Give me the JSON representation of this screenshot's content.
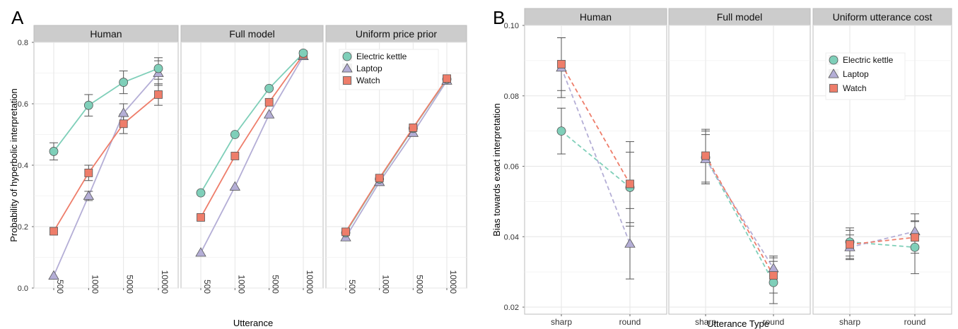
{
  "colors": {
    "kettle": "#7fcfb9",
    "laptop": "#b4aed6",
    "watch": "#ee7d6a",
    "strip": "#cccccc",
    "panel_border": "#bdbdbd",
    "grid": "#e6e6e6",
    "errorbar": "#555555"
  },
  "chart_data": [
    {
      "panel_letter": "A",
      "type": "line",
      "xlabel": "Utterance",
      "ylabel": "Probability of hyperbolic interpretation",
      "categories": [
        "500",
        "1000",
        "5000",
        "10000"
      ],
      "ylim": [
        0,
        0.8
      ],
      "yticks": [
        0.0,
        0.2,
        0.4,
        0.6,
        0.8
      ],
      "ytick_labels": [
        "0.0",
        "0.2",
        "0.4",
        "0.6",
        "0.8"
      ],
      "grid": true,
      "tick_rotation": "vertical",
      "line_style": "solid",
      "legend_placement": "top-right of third facet",
      "legend_facet": 2,
      "legend": [
        {
          "label": "Electric kettle",
          "color_key": "kettle",
          "marker": "circle"
        },
        {
          "label": "Laptop",
          "color_key": "laptop",
          "marker": "triangle"
        },
        {
          "label": "Watch",
          "color_key": "watch",
          "marker": "square"
        }
      ],
      "facets": [
        {
          "title": "Human",
          "series": [
            {
              "name": "Laptop",
              "values": [
                0.04,
                0.3,
                0.57,
                0.7
              ],
              "errors": [
                null,
                0.015,
                0.03,
                0.04
              ]
            },
            {
              "name": "Watch",
              "values": [
                0.185,
                0.375,
                0.535,
                0.63
              ],
              "errors": [
                0.012,
                0.025,
                0.032,
                0.035
              ]
            },
            {
              "name": "Electric kettle",
              "values": [
                0.445,
                0.595,
                0.67,
                0.715
              ],
              "errors": [
                0.028,
                0.035,
                0.037,
                0.035
              ]
            }
          ]
        },
        {
          "title": "Full model",
          "series": [
            {
              "name": "Laptop",
              "values": [
                0.115,
                0.33,
                0.565,
                0.755
              ],
              "errors": null
            },
            {
              "name": "Watch",
              "values": [
                0.23,
                0.43,
                0.605,
                0.76
              ],
              "errors": null
            },
            {
              "name": "Electric kettle",
              "values": [
                0.31,
                0.5,
                0.65,
                0.765
              ],
              "errors": null
            }
          ]
        },
        {
          "title": "Uniform price prior",
          "series": [
            {
              "name": "Laptop",
              "values": [
                0.165,
                0.345,
                0.505,
                0.675
              ],
              "errors": null
            },
            {
              "name": "Electric kettle",
              "values": [
                0.18,
                0.355,
                0.52,
                0.68
              ],
              "errors": null
            },
            {
              "name": "Watch",
              "values": [
                0.183,
                0.358,
                0.522,
                0.682
              ],
              "errors": null
            }
          ]
        }
      ]
    },
    {
      "panel_letter": "B",
      "type": "line",
      "xlabel": "Utterance Type",
      "ylabel": "Bias towards exact interpretation",
      "categories": [
        "sharp",
        "round"
      ],
      "ylim": [
        0.018,
        0.1
      ],
      "yticks": [
        0.02,
        0.04,
        0.06,
        0.08,
        0.1
      ],
      "ytick_labels": [
        "0.02",
        "0.04",
        "0.06",
        "0.08",
        "0.10"
      ],
      "grid": true,
      "tick_rotation": "horizontal",
      "line_style": "dashed",
      "legend_placement": "top-right of third facet",
      "legend_facet": 2,
      "legend": [
        {
          "label": "Electric kettle",
          "color_key": "kettle",
          "marker": "circle"
        },
        {
          "label": "Laptop",
          "color_key": "laptop",
          "marker": "triangle"
        },
        {
          "label": "Watch",
          "color_key": "watch",
          "marker": "square"
        }
      ],
      "facets": [
        {
          "title": "Human",
          "series": [
            {
              "name": "Electric kettle",
              "values": [
                0.07,
                0.054
              ],
              "errors": [
                0.0065,
                0.01
              ]
            },
            {
              "name": "Laptop",
              "values": [
                0.088,
                0.038
              ],
              "errors": [
                0.0085,
                0.01
              ]
            },
            {
              "name": "Watch",
              "values": [
                0.089,
                0.055
              ],
              "errors": [
                0.0075,
                0.012
              ]
            }
          ]
        },
        {
          "title": "Full model",
          "series": [
            {
              "name": "Electric kettle",
              "values": [
                0.0625,
                0.027
              ],
              "errors": [
                0.0075,
                0.006
              ]
            },
            {
              "name": "Laptop",
              "values": [
                0.062,
                0.031
              ],
              "errors": [
                0.007,
                0.0035
              ]
            },
            {
              "name": "Watch",
              "values": [
                0.063,
                0.029
              ],
              "errors": [
                0.0075,
                0.005
              ]
            }
          ]
        },
        {
          "title": "Uniform utterance cost",
          "series": [
            {
              "name": "Electric kettle",
              "values": [
                0.0385,
                0.037
              ],
              "errors": [
                0.004,
                0.0075
              ]
            },
            {
              "name": "Laptop",
              "values": [
                0.037,
                0.0415
              ],
              "errors": [
                0.0035,
                0.005
              ]
            },
            {
              "name": "Watch",
              "values": [
                0.0378,
                0.0398
              ],
              "errors": [
                0.004,
                0.0045
              ]
            }
          ]
        }
      ]
    }
  ]
}
